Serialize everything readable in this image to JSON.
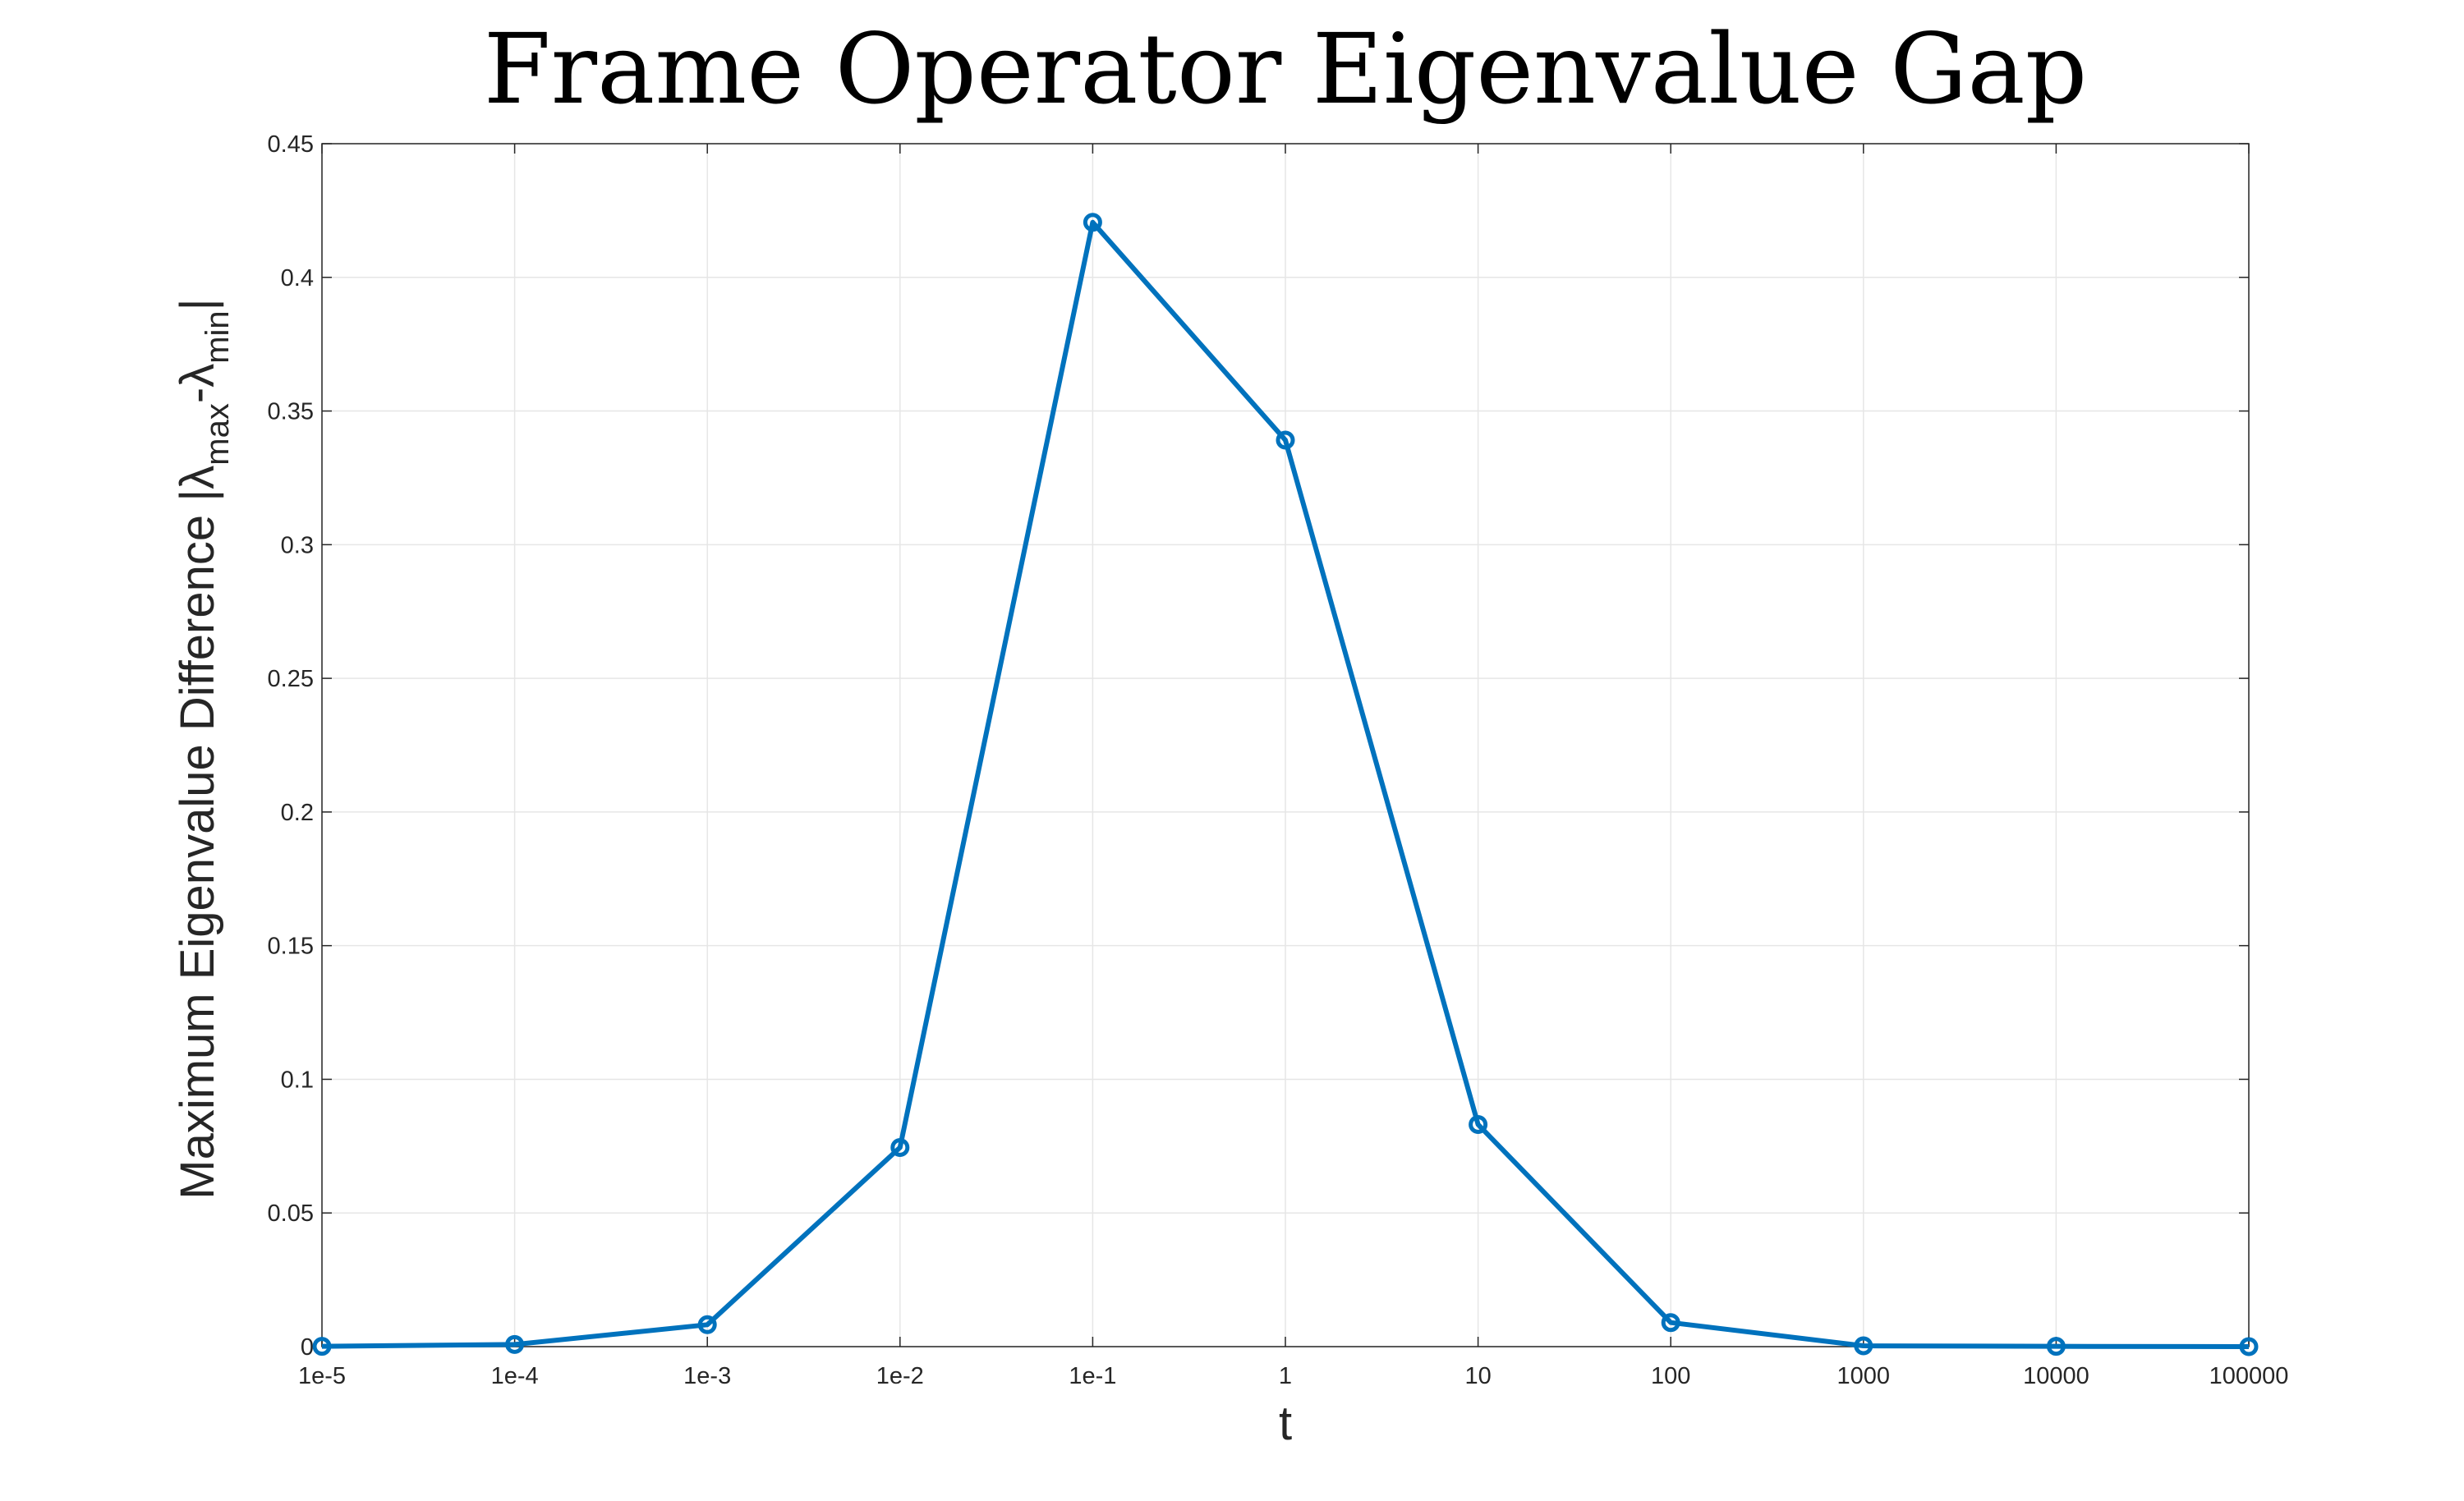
{
  "chart_data": {
    "type": "line",
    "title": "Frame Operator Eigenvalue Gap",
    "xlabel": "t",
    "ylabel": {
      "base": "Maximum Eigenvalue Difference |",
      "lambda": "λ",
      "sub_max": "max",
      "dash": "-",
      "sub_min": "min",
      "close": "|"
    },
    "categories": [
      "1e-5",
      "1e-4",
      "1e-3",
      "1e-2",
      "1e-1",
      "1",
      "10",
      "100",
      "1000",
      "10000",
      "100000"
    ],
    "yticks": [
      "0",
      "0.05",
      "0.1",
      "0.15",
      "0.2",
      "0.25",
      "0.3",
      "0.35",
      "0.4",
      "0.45"
    ],
    "ylim": [
      0,
      0.45
    ],
    "x_scale": "log",
    "grid": true,
    "marker": "circle",
    "series": [
      {
        "values": [
          0.0001,
          0.0008,
          0.0082,
          0.0745,
          0.4206,
          0.3391,
          0.0831,
          0.009,
          0.0003,
          0.0001,
          0.0
        ],
        "color": "#0072BD"
      }
    ]
  }
}
